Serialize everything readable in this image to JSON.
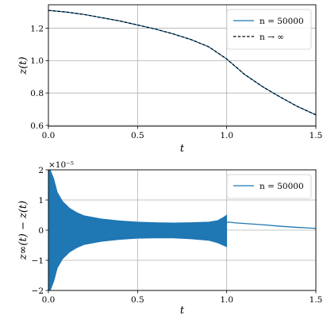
{
  "chart_data": [
    {
      "type": "line",
      "xlabel": "t",
      "ylabel": "z(t)",
      "xlim": [
        0.0,
        1.5
      ],
      "ylim": [
        0.595,
        1.345
      ],
      "xticks": [
        0.0,
        0.5,
        1.0,
        1.5
      ],
      "xtick_labels": [
        "0.0",
        "0.5",
        "1.0",
        "1.5"
      ],
      "yticks": [
        0.6,
        0.8,
        1.0,
        1.2
      ],
      "ytick_labels": [
        "0.6",
        "0.8",
        "1.0",
        "1.2"
      ],
      "grid": true,
      "legend_position": "top-right",
      "series": [
        {
          "name": "n = 50000",
          "color": "#1f77b4",
          "style": "solid",
          "x": [
            0.0,
            0.1,
            0.2,
            0.3,
            0.4,
            0.5,
            0.6,
            0.7,
            0.8,
            0.9,
            1.0,
            1.1,
            1.2,
            1.3,
            1.4,
            1.5
          ],
          "y": [
            1.31,
            1.3,
            1.285,
            1.265,
            1.245,
            1.22,
            1.195,
            1.165,
            1.13,
            1.085,
            1.01,
            0.915,
            0.84,
            0.775,
            0.715,
            0.665
          ]
        },
        {
          "name": "n → ∞",
          "color": "#000000",
          "style": "dashed",
          "x": [
            0.0,
            0.1,
            0.2,
            0.3,
            0.4,
            0.5,
            0.6,
            0.7,
            0.8,
            0.9,
            1.0,
            1.1,
            1.2,
            1.3,
            1.4,
            1.5
          ],
          "y": [
            1.31,
            1.3,
            1.285,
            1.265,
            1.245,
            1.22,
            1.195,
            1.165,
            1.13,
            1.085,
            1.01,
            0.915,
            0.84,
            0.775,
            0.715,
            0.665
          ]
        }
      ]
    },
    {
      "type": "line",
      "xlabel": "t",
      "ylabel": "z∞(t) − z(t)",
      "scale_label": "×10⁻⁵",
      "xlim": [
        0.0,
        1.5
      ],
      "ylim": [
        -2,
        2
      ],
      "xticks": [
        0.0,
        0.5,
        1.0,
        1.5
      ],
      "xtick_labels": [
        "0.0",
        "0.5",
        "1.0",
        "1.5"
      ],
      "yticks": [
        -2,
        -1,
        0,
        1,
        2
      ],
      "ytick_labels": [
        "−2",
        "−1",
        "0",
        "1",
        "2"
      ],
      "grid": true,
      "legend_position": "top-right",
      "series": [
        {
          "name": "n = 50000",
          "color": "#1f77b4",
          "oscillation_envelope": {
            "x": [
              0.0,
              0.01,
              0.03,
              0.05,
              0.08,
              0.12,
              0.16,
              0.2,
              0.3,
              0.4,
              0.5,
              0.6,
              0.7,
              0.8,
              0.9,
              0.95,
              0.98,
              1.0
            ],
            "upper": [
              2.0,
              2.0,
              1.7,
              1.25,
              0.95,
              0.72,
              0.58,
              0.48,
              0.37,
              0.31,
              0.27,
              0.25,
              0.24,
              0.25,
              0.27,
              0.32,
              0.42,
              0.5
            ],
            "lower": [
              -2.0,
              -2.0,
              -1.7,
              -1.25,
              -0.95,
              -0.72,
              -0.58,
              -0.48,
              -0.37,
              -0.31,
              -0.27,
              -0.26,
              -0.26,
              -0.29,
              -0.34,
              -0.42,
              -0.5,
              -0.55
            ]
          },
          "x": [
            1.0,
            1.01,
            1.05,
            1.1,
            1.2,
            1.3,
            1.4,
            1.5
          ],
          "y": [
            0.25,
            0.27,
            0.24,
            0.22,
            0.18,
            0.13,
            0.09,
            0.06
          ]
        }
      ]
    }
  ]
}
